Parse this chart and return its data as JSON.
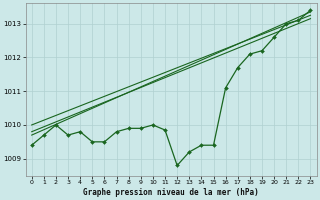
{
  "x": [
    0,
    1,
    2,
    3,
    4,
    5,
    6,
    7,
    8,
    9,
    10,
    11,
    12,
    13,
    14,
    15,
    16,
    17,
    18,
    19,
    20,
    21,
    22,
    23
  ],
  "main_y": [
    1009.4,
    1009.7,
    1010.0,
    1009.7,
    1009.8,
    1009.5,
    1009.5,
    1009.8,
    1009.9,
    1009.9,
    1010.0,
    1009.85,
    1008.8,
    1009.2,
    1009.4,
    1009.4,
    1011.1,
    1011.7,
    1012.1,
    1012.2,
    1012.6,
    1013.0,
    1013.1,
    1013.4
  ],
  "line_color": "#1a6620",
  "bg_color": "#cce8e8",
  "grid_color": "#b0d0d0",
  "xlabel": "Graphe pression niveau de la mer (hPa)",
  "ylim": [
    1008.5,
    1013.6
  ],
  "yticks": [
    1009,
    1010,
    1011,
    1012,
    1013
  ],
  "xticks": [
    0,
    1,
    2,
    3,
    4,
    5,
    6,
    7,
    8,
    9,
    10,
    11,
    12,
    13,
    14,
    15,
    16,
    17,
    18,
    19,
    20,
    21,
    22,
    23
  ],
  "trend_starts": [
    1010.0,
    1009.8,
    1009.7
  ],
  "trend_ends": [
    1013.25,
    1013.15,
    1013.35
  ]
}
